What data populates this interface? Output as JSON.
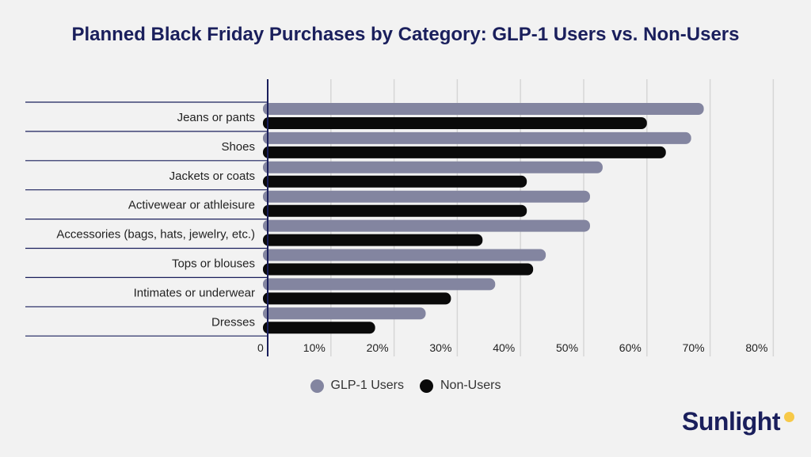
{
  "chart_data": {
    "type": "bar",
    "orientation": "horizontal",
    "title": "Planned Black Friday Purchases by Category: GLP-1 Users vs. Non-Users",
    "categories": [
      "Jeans or pants",
      "Shoes",
      "Jackets or coats",
      "Activewear or athleisure",
      "Accessories (bags, hats, jewelry, etc.)",
      "Tops or blouses",
      "Intimates or underwear",
      "Dresses"
    ],
    "series": [
      {
        "name": "GLP-1 Users",
        "color": "#8385a0",
        "values": [
          69,
          67,
          53,
          51,
          51,
          44,
          36,
          25
        ]
      },
      {
        "name": "Non-Users",
        "color": "#0a0a0a",
        "values": [
          60,
          63,
          41,
          41,
          34,
          42,
          29,
          17
        ]
      }
    ],
    "xlim": [
      0,
      80
    ],
    "xticks": [
      0,
      10,
      20,
      30,
      40,
      50,
      60,
      70,
      80
    ],
    "xtick_labels": [
      "0",
      "10%",
      "20%",
      "30%",
      "40%",
      "50%",
      "60%",
      "70%",
      "80%"
    ],
    "grid": true,
    "legend": "bottom-center"
  },
  "brand": {
    "name": "Sunlight",
    "dot_color": "#f7c948"
  }
}
